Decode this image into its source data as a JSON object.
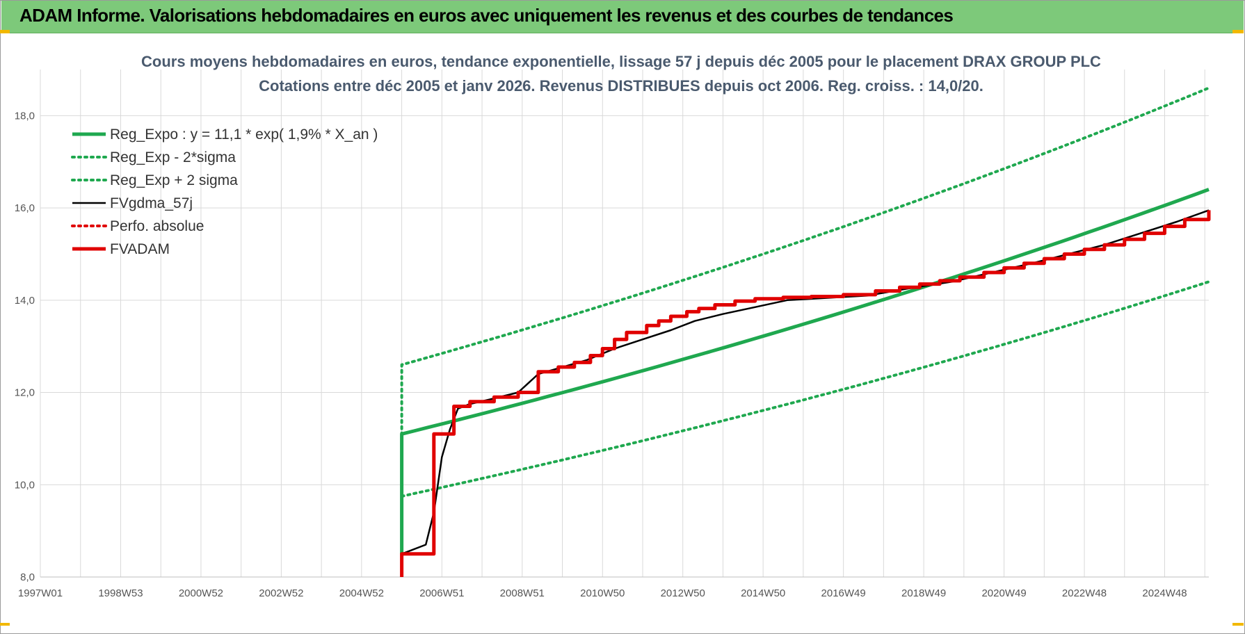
{
  "banner": {
    "title": "ADAM Informe. Valorisations hebdomadaires en euros avec uniquement les revenus et des courbes de tendances"
  },
  "colors": {
    "banner_bg": "#7dc97a",
    "trend_green": "#1fa84f",
    "band_green": "#1fa84f",
    "fv_black": "#000000",
    "perf_red": "#e00000",
    "fvadam_red": "#e00000",
    "grid": "#d9d9d9"
  },
  "chart_data": {
    "type": "line",
    "title_lines": [
      "Cours moyens hebdomadaires en euros, tendance exponentielle, lissage 57 j depuis déc 2005 pour le placement DRAX GROUP PLC",
      "Cotations entre déc 2005 et janv 2026. Revenus DISTRIBUES depuis oct 2006. Reg. croiss. : 14,0/20."
    ],
    "xlabel": "",
    "ylabel": "",
    "xlim": [
      1997.0,
      2026.1
    ],
    "ylim": [
      8.0,
      19.0
    ],
    "grid": true,
    "legend_position": "top-left",
    "x_tick_labels": [
      "1997W01",
      "1998W53",
      "2000W52",
      "2002W52",
      "2004W52",
      "2006W51",
      "2008W51",
      "2010W50",
      "2012W50",
      "2014W50",
      "2016W49",
      "2018W49",
      "2020W49",
      "2022W48",
      "2024W48"
    ],
    "x_ticks": [
      1997.0,
      1999.0,
      2001.0,
      2003.0,
      2005.0,
      2007.0,
      2009.0,
      2011.0,
      2013.0,
      2015.0,
      2017.0,
      2019.0,
      2021.0,
      2023.0,
      2025.0
    ],
    "y_ticks": [
      8.0,
      10.0,
      12.0,
      14.0,
      16.0,
      18.0
    ],
    "y_tick_labels": [
      "8,0",
      "10,0",
      "12,0",
      "14,0",
      "16,0",
      "18,0"
    ],
    "series": [
      {
        "name": "Reg_Expo : y = 11,1 * exp( 1,9% *  X_an )",
        "style": "solid-thick",
        "color": "#1fa84f",
        "x": [
          2006.0,
          2006.0,
          2026.1
        ],
        "y": [
          8.5,
          11.1,
          16.4
        ]
      },
      {
        "name": "Reg_Exp - 2*sigma",
        "style": "dotted",
        "color": "#1fa84f",
        "x": [
          2006.0,
          2026.1
        ],
        "y": [
          9.75,
          14.4
        ]
      },
      {
        "name": "Reg_Exp + 2 sigma",
        "style": "dotted",
        "color": "#1fa84f",
        "x": [
          2006.0,
          2006.0,
          2026.1
        ],
        "y": [
          8.5,
          12.6,
          18.6
        ]
      },
      {
        "name": "FVgdma_57j",
        "style": "solid",
        "color": "#000000",
        "x": [
          2006.0,
          2006.6,
          2006.8,
          2007.0,
          2007.2,
          2007.4,
          2007.7,
          2008.2,
          2008.9,
          2009.4,
          2009.8,
          2010.6,
          2011.3,
          2012.0,
          2012.7,
          2013.3,
          2014.0,
          2014.8,
          2015.6,
          2016.6,
          2017.6,
          2018.6,
          2019.7,
          2020.7,
          2021.7,
          2022.6,
          2023.5,
          2024.4,
          2025.3,
          2026.1
        ],
        "y": [
          8.5,
          8.7,
          9.4,
          10.6,
          11.2,
          11.65,
          11.75,
          11.85,
          12.0,
          12.4,
          12.5,
          12.7,
          12.95,
          13.15,
          13.35,
          13.55,
          13.7,
          13.85,
          14.0,
          14.05,
          14.1,
          14.25,
          14.4,
          14.6,
          14.8,
          15.0,
          15.2,
          15.45,
          15.7,
          15.95
        ]
      },
      {
        "name": "Perfo. absolue",
        "style": "dotted",
        "color": "#e00000",
        "x": [],
        "y": []
      },
      {
        "name": "FVADAM",
        "style": "step-thick",
        "color": "#e00000",
        "x": [
          2006.0,
          2006.0,
          2006.8,
          2006.8,
          2007.3,
          2007.3,
          2007.7,
          2008.3,
          2008.9,
          2009.4,
          2009.4,
          2009.9,
          2010.3,
          2010.7,
          2011.0,
          2011.3,
          2011.6,
          2012.1,
          2012.4,
          2012.7,
          2013.1,
          2013.4,
          2013.8,
          2014.3,
          2014.8,
          2015.5,
          2016.2,
          2017.0,
          2017.8,
          2018.4,
          2018.9,
          2019.4,
          2019.9,
          2020.5,
          2021.0,
          2021.5,
          2022.0,
          2022.5,
          2023.0,
          2023.5,
          2024.0,
          2024.5,
          2025.0,
          2025.5,
          2026.1
        ],
        "y": [
          8.0,
          8.5,
          8.5,
          11.1,
          11.1,
          11.7,
          11.8,
          11.9,
          12.0,
          12.0,
          12.45,
          12.55,
          12.65,
          12.8,
          12.95,
          13.15,
          13.3,
          13.45,
          13.55,
          13.65,
          13.75,
          13.82,
          13.9,
          13.98,
          14.03,
          14.06,
          14.08,
          14.12,
          14.2,
          14.28,
          14.35,
          14.42,
          14.5,
          14.6,
          14.7,
          14.8,
          14.9,
          15.0,
          15.1,
          15.2,
          15.32,
          15.45,
          15.6,
          15.75,
          15.95
        ]
      }
    ]
  }
}
